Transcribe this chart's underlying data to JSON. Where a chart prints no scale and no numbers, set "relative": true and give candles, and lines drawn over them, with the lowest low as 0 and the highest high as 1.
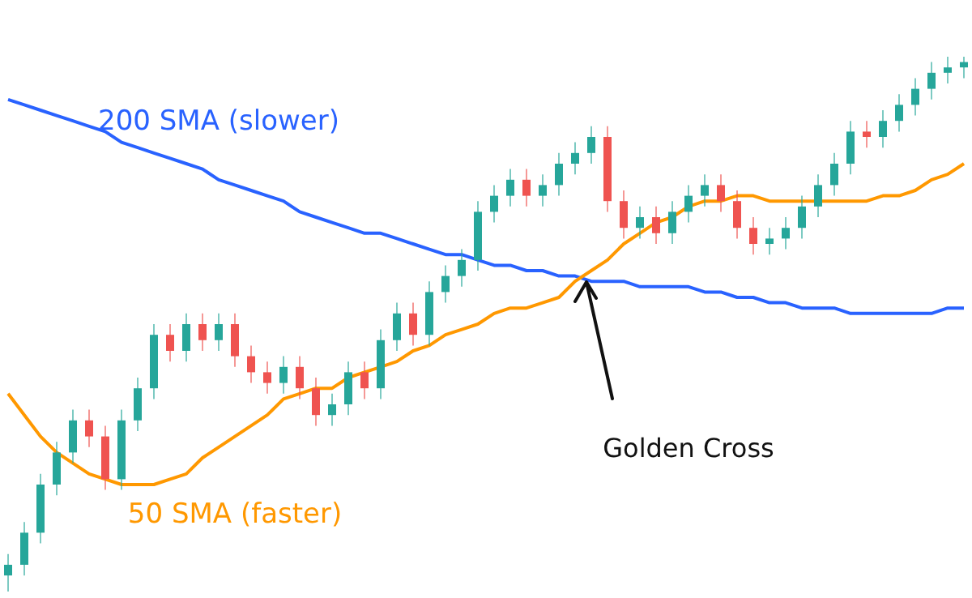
{
  "chart_data": {
    "type": "candlestick",
    "relative": true,
    "marker": "none",
    "line_style": "solid",
    "categories": [
      null,
      null,
      null,
      null,
      null,
      null,
      null,
      null,
      null,
      null,
      null,
      null,
      null,
      null,
      null,
      null,
      null,
      null,
      null,
      null,
      null,
      null,
      null,
      null,
      null,
      null,
      null,
      null,
      null,
      null,
      null,
      null,
      null,
      null,
      null,
      null,
      null,
      null,
      null,
      null,
      null,
      null,
      null,
      null,
      null,
      null,
      null,
      null,
      null,
      null,
      null,
      null,
      null,
      null,
      null,
      null,
      null,
      null,
      null,
      null
    ],
    "ohlc": [
      [
        0.03,
        0.07,
        0.0,
        0.05
      ],
      [
        0.05,
        0.13,
        0.03,
        0.11
      ],
      [
        0.11,
        0.22,
        0.09,
        0.2
      ],
      [
        0.2,
        0.28,
        0.18,
        0.26
      ],
      [
        0.26,
        0.34,
        0.24,
        0.32
      ],
      [
        0.32,
        0.34,
        0.27,
        0.29
      ],
      [
        0.29,
        0.31,
        0.19,
        0.21
      ],
      [
        0.21,
        0.34,
        0.19,
        0.32
      ],
      [
        0.32,
        0.4,
        0.3,
        0.38
      ],
      [
        0.38,
        0.5,
        0.36,
        0.48
      ],
      [
        0.48,
        0.5,
        0.43,
        0.45
      ],
      [
        0.45,
        0.52,
        0.43,
        0.5
      ],
      [
        0.5,
        0.52,
        0.45,
        0.47
      ],
      [
        0.47,
        0.52,
        0.45,
        0.5
      ],
      [
        0.5,
        0.52,
        0.42,
        0.44
      ],
      [
        0.44,
        0.46,
        0.39,
        0.41
      ],
      [
        0.41,
        0.43,
        0.37,
        0.39
      ],
      [
        0.39,
        0.44,
        0.37,
        0.42
      ],
      [
        0.42,
        0.44,
        0.36,
        0.38
      ],
      [
        0.38,
        0.4,
        0.31,
        0.33
      ],
      [
        0.33,
        0.37,
        0.31,
        0.35
      ],
      [
        0.35,
        0.43,
        0.33,
        0.41
      ],
      [
        0.41,
        0.43,
        0.36,
        0.38
      ],
      [
        0.38,
        0.49,
        0.36,
        0.47
      ],
      [
        0.47,
        0.54,
        0.45,
        0.52
      ],
      [
        0.52,
        0.54,
        0.46,
        0.48
      ],
      [
        0.48,
        0.58,
        0.46,
        0.56
      ],
      [
        0.56,
        0.61,
        0.54,
        0.59
      ],
      [
        0.59,
        0.64,
        0.57,
        0.62
      ],
      [
        0.62,
        0.73,
        0.6,
        0.71
      ],
      [
        0.71,
        0.76,
        0.69,
        0.74
      ],
      [
        0.74,
        0.79,
        0.72,
        0.77
      ],
      [
        0.77,
        0.79,
        0.72,
        0.74
      ],
      [
        0.74,
        0.78,
        0.72,
        0.76
      ],
      [
        0.76,
        0.82,
        0.74,
        0.8
      ],
      [
        0.8,
        0.84,
        0.78,
        0.82
      ],
      [
        0.82,
        0.87,
        0.8,
        0.85
      ],
      [
        0.85,
        0.87,
        0.71,
        0.73
      ],
      [
        0.73,
        0.75,
        0.66,
        0.68
      ],
      [
        0.68,
        0.72,
        0.66,
        0.7
      ],
      [
        0.7,
        0.72,
        0.65,
        0.67
      ],
      [
        0.67,
        0.73,
        0.65,
        0.71
      ],
      [
        0.71,
        0.76,
        0.69,
        0.74
      ],
      [
        0.74,
        0.78,
        0.72,
        0.76
      ],
      [
        0.76,
        0.78,
        0.71,
        0.73
      ],
      [
        0.73,
        0.75,
        0.66,
        0.68
      ],
      [
        0.68,
        0.7,
        0.63,
        0.65
      ],
      [
        0.65,
        0.68,
        0.63,
        0.66
      ],
      [
        0.66,
        0.7,
        0.64,
        0.68
      ],
      [
        0.68,
        0.74,
        0.66,
        0.72
      ],
      [
        0.72,
        0.78,
        0.7,
        0.76
      ],
      [
        0.76,
        0.82,
        0.74,
        0.8
      ],
      [
        0.8,
        0.88,
        0.78,
        0.86
      ],
      [
        0.86,
        0.88,
        0.83,
        0.85
      ],
      [
        0.85,
        0.9,
        0.83,
        0.88
      ],
      [
        0.88,
        0.93,
        0.86,
        0.91
      ],
      [
        0.91,
        0.96,
        0.89,
        0.94
      ],
      [
        0.94,
        0.99,
        0.92,
        0.97
      ],
      [
        0.97,
        1.0,
        0.95,
        0.98
      ],
      [
        0.98,
        1.0,
        0.96,
        0.99
      ]
    ],
    "series": [
      {
        "name": "200 SMA (slower)",
        "type": "line",
        "color": "#2962ff",
        "values": [
          0.92,
          0.91,
          0.9,
          0.89,
          0.88,
          0.87,
          0.86,
          0.84,
          0.83,
          0.82,
          0.81,
          0.8,
          0.79,
          0.77,
          0.76,
          0.75,
          0.74,
          0.73,
          0.71,
          0.7,
          0.69,
          0.68,
          0.67,
          0.67,
          0.66,
          0.65,
          0.64,
          0.63,
          0.63,
          0.62,
          0.61,
          0.61,
          0.6,
          0.6,
          0.59,
          0.59,
          0.58,
          0.58,
          0.58,
          0.57,
          0.57,
          0.57,
          0.57,
          0.56,
          0.56,
          0.55,
          0.55,
          0.54,
          0.54,
          0.53,
          0.53,
          0.53,
          0.52,
          0.52,
          0.52,
          0.52,
          0.52,
          0.52,
          0.53,
          0.53
        ]
      },
      {
        "name": "50 SMA (faster)",
        "type": "line",
        "color": "#ff9800",
        "values": [
          0.37,
          0.33,
          0.29,
          0.26,
          0.24,
          0.22,
          0.21,
          0.2,
          0.2,
          0.2,
          0.21,
          0.22,
          0.25,
          0.27,
          0.29,
          0.31,
          0.33,
          0.36,
          0.37,
          0.38,
          0.38,
          0.4,
          0.41,
          0.42,
          0.43,
          0.45,
          0.46,
          0.48,
          0.49,
          0.5,
          0.52,
          0.53,
          0.53,
          0.54,
          0.55,
          0.58,
          0.6,
          0.62,
          0.65,
          0.67,
          0.69,
          0.7,
          0.72,
          0.73,
          0.73,
          0.74,
          0.74,
          0.73,
          0.73,
          0.73,
          0.73,
          0.73,
          0.73,
          0.73,
          0.74,
          0.74,
          0.75,
          0.77,
          0.78,
          0.8
        ]
      }
    ],
    "annotations": [
      "Golden Cross"
    ]
  }
}
